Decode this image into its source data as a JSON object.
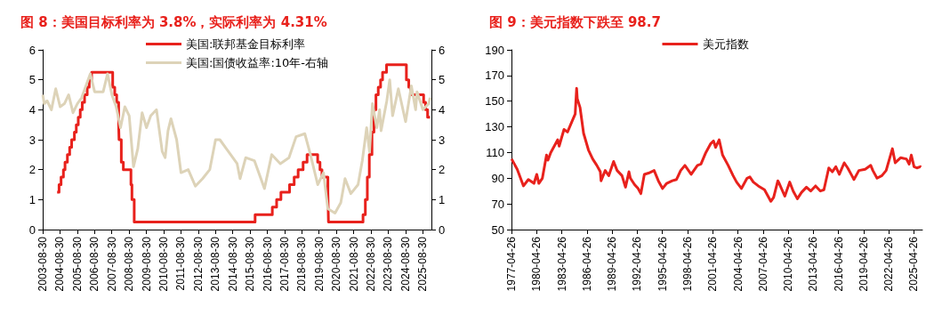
{
  "chart_data": [
    {
      "type": "line",
      "title": "图 8：美国目标利率为 3.8%，实际利率为 4.31%",
      "legend": "top",
      "grid": false,
      "marker": "none",
      "xlim": [
        "2003-08-30",
        "2026-03-01"
      ],
      "xticks": [
        "2003-08-30",
        "2004-08-30",
        "2005-08-30",
        "2006-08-30",
        "2007-08-30",
        "2008-08-30",
        "2009-08-30",
        "2010-08-30",
        "2011-08-30",
        "2012-08-30",
        "2013-08-30",
        "2014-08-30",
        "2015-08-30",
        "2016-08-30",
        "2017-08-30",
        "2018-08-30",
        "2019-08-30",
        "2020-08-30",
        "2021-08-30",
        "2022-08-30",
        "2023-08-30",
        "2024-08-30",
        "2025-08-30"
      ],
      "ylim": [
        0,
        6
      ],
      "yticks": [
        0,
        1,
        2,
        3,
        4,
        5,
        6
      ],
      "y2lim": [
        0,
        6
      ],
      "y2ticks": [
        0,
        1,
        2,
        3,
        4,
        5,
        6
      ],
      "series": [
        {
          "name": "美国:联邦基金目标利率",
          "type": "step",
          "color": "#e8211c",
          "x": [
            "2004-06-30",
            "2004-08-10",
            "2004-09-21",
            "2004-11-10",
            "2004-12-14",
            "2005-02-02",
            "2005-03-22",
            "2005-05-03",
            "2005-06-30",
            "2005-08-09",
            "2005-09-20",
            "2005-11-01",
            "2005-12-13",
            "2006-01-31",
            "2006-03-28",
            "2006-05-10",
            "2006-06-29",
            "2007-09-18",
            "2007-10-31",
            "2007-12-11",
            "2008-01-22",
            "2008-01-30",
            "2008-03-18",
            "2008-04-30",
            "2008-10-08",
            "2008-10-29",
            "2008-12-16",
            "2015-12-16",
            "2016-12-14",
            "2017-03-15",
            "2017-06-14",
            "2017-12-13",
            "2018-03-21",
            "2018-06-13",
            "2018-09-26",
            "2018-12-19",
            "2019-07-31",
            "2019-09-18",
            "2019-10-30",
            "2020-03-03",
            "2020-03-15",
            "2022-03-16",
            "2022-05-04",
            "2022-06-15",
            "2022-07-27",
            "2022-09-21",
            "2022-11-02",
            "2022-12-14",
            "2023-02-01",
            "2023-03-22",
            "2023-05-03",
            "2023-07-26",
            "2024-09-18",
            "2024-11-07",
            "2024-12-18",
            "2025-09-17",
            "2025-10-29",
            "2025-12-10",
            "2026-01-31"
          ],
          "values": [
            1.25,
            1.5,
            1.75,
            2.0,
            2.25,
            2.5,
            2.75,
            3.0,
            3.25,
            3.5,
            3.75,
            4.0,
            4.25,
            4.5,
            4.75,
            5.0,
            5.25,
            4.75,
            4.5,
            4.25,
            3.5,
            3.0,
            2.25,
            2.0,
            1.5,
            1.0,
            0.25,
            0.5,
            0.75,
            1.0,
            1.25,
            1.5,
            1.75,
            2.0,
            2.25,
            2.5,
            2.25,
            2.0,
            1.75,
            1.25,
            0.25,
            0.5,
            1.0,
            1.75,
            2.5,
            3.25,
            4.0,
            4.5,
            4.75,
            5.0,
            5.25,
            5.5,
            5.0,
            4.75,
            4.5,
            4.25,
            4.0,
            3.75,
            3.75
          ]
        },
        {
          "name": "美国:国债收益率:10年-右轴",
          "type": "line",
          "axis": "y2",
          "color": "#ddd3b8",
          "x": [
            "2003-09",
            "2003-10",
            "2003-12",
            "2004-03",
            "2004-06",
            "2004-09",
            "2004-12",
            "2005-03",
            "2005-06",
            "2005-09",
            "2005-12",
            "2006-03",
            "2006-06",
            "2006-09",
            "2006-12",
            "2007-03",
            "2007-06",
            "2007-09",
            "2007-12",
            "2008-03",
            "2008-06",
            "2008-09",
            "2008-12",
            "2009-03",
            "2009-06",
            "2009-09",
            "2009-12",
            "2010-04",
            "2010-08",
            "2010-10",
            "2010-12",
            "2011-02",
            "2011-06",
            "2011-09",
            "2012-02",
            "2012-07",
            "2012-12",
            "2013-05",
            "2013-09",
            "2013-12",
            "2014-06",
            "2014-12",
            "2015-02",
            "2015-06",
            "2015-12",
            "2016-07",
            "2016-12",
            "2017-06",
            "2017-12",
            "2018-05",
            "2018-11",
            "2019-03",
            "2019-08",
            "2019-12",
            "2020-03",
            "2020-08",
            "2020-12",
            "2021-03",
            "2021-07",
            "2021-12",
            "2022-03",
            "2022-06",
            "2022-08",
            "2022-10",
            "2023-01",
            "2023-03",
            "2023-04",
            "2023-08",
            "2023-10",
            "2023-12",
            "2024-04",
            "2024-09",
            "2025-01",
            "2025-04",
            "2025-05",
            "2025-09",
            "2025-11",
            "2026-01",
            "2026-02"
          ],
          "values": [
            4.5,
            4.2,
            4.3,
            4.0,
            4.7,
            4.1,
            4.2,
            4.5,
            3.9,
            4.2,
            4.4,
            4.8,
            5.2,
            4.6,
            4.6,
            4.6,
            5.2,
            4.5,
            4.1,
            3.4,
            4.1,
            3.8,
            2.1,
            2.7,
            3.9,
            3.4,
            3.8,
            4.0,
            2.6,
            2.4,
            3.3,
            3.7,
            3.0,
            1.9,
            2.0,
            1.45,
            1.7,
            2.0,
            3.0,
            3.0,
            2.6,
            2.2,
            1.7,
            2.4,
            2.3,
            1.37,
            2.5,
            2.2,
            2.4,
            3.1,
            3.2,
            2.5,
            1.5,
            1.9,
            0.7,
            0.55,
            0.9,
            1.7,
            1.2,
            1.5,
            2.3,
            3.4,
            2.6,
            4.2,
            3.4,
            4.0,
            3.3,
            4.3,
            5.0,
            3.8,
            4.7,
            3.6,
            4.8,
            4.0,
            4.6,
            4.0,
            4.1,
            4.2,
            4.4
          ]
        }
      ]
    },
    {
      "type": "line",
      "title": "图 9：美元指数下跌至 98.7",
      "legend": "top",
      "grid": false,
      "marker": "none",
      "xlim": [
        "1977-04-26",
        "2026-05-01"
      ],
      "xticks": [
        "1977-04-26",
        "1980-04-26",
        "1983-04-26",
        "1986-04-26",
        "1989-04-26",
        "1992-04-26",
        "1995-04-26",
        "1998-04-26",
        "2001-04-26",
        "2004-04-26",
        "2007-04-26",
        "2010-04-26",
        "2013-04-26",
        "2016-04-26",
        "2019-04-26",
        "2022-04-26",
        "2025-04-26"
      ],
      "ylim": [
        50,
        190
      ],
      "yticks": [
        50,
        70,
        90,
        110,
        130,
        150,
        170,
        190
      ],
      "series": [
        {
          "name": "美元指数",
          "color": "#e8211c",
          "x": [
            "1977-05",
            "1978-01",
            "1978-10",
            "1979-05",
            "1980-01",
            "1980-05",
            "1980-08",
            "1981-01",
            "1981-07",
            "1981-09",
            "1982-01",
            "1982-11",
            "1983-01",
            "1983-08",
            "1984-01",
            "1984-08",
            "1984-12",
            "1985-02",
            "1985-03",
            "1985-07",
            "1985-12",
            "1986-07",
            "1987-01",
            "1987-07",
            "1987-12",
            "1988-01",
            "1988-07",
            "1988-12",
            "1989-07",
            "1989-12",
            "1990-07",
            "1990-12",
            "1991-05",
            "1991-07",
            "1992-01",
            "1992-06",
            "1992-10",
            "1993-03",
            "1993-09",
            "1994-05",
            "1994-11",
            "1995-05",
            "1995-11",
            "1996-07",
            "1997-01",
            "1997-07",
            "1998-01",
            "1998-10",
            "1999-07",
            "1999-12",
            "2000-07",
            "2001-02",
            "2001-06",
            "2001-09",
            "2002-02",
            "2002-07",
            "2003-03",
            "2003-10",
            "2004-03",
            "2004-10",
            "2005-06",
            "2005-10",
            "2006-03",
            "2006-10",
            "2007-07",
            "2007-12",
            "2008-04",
            "2008-08",
            "2009-02",
            "2009-04",
            "2009-12",
            "2010-07",
            "2010-12",
            "2011-06",
            "2011-12",
            "2012-07",
            "2013-01",
            "2013-08",
            "2014-03",
            "2014-08",
            "2015-03",
            "2015-08",
            "2016-01",
            "2016-06",
            "2017-01",
            "2017-06",
            "2017-12",
            "2018-03",
            "2018-10",
            "2019-07",
            "2020-03",
            "2020-06",
            "2020-12",
            "2021-07",
            "2022-01",
            "2022-10",
            "2023-02",
            "2023-10",
            "2024-06",
            "2024-10",
            "2025-01",
            "2025-05",
            "2025-09",
            "2026-02",
            "2026-03"
          ],
          "values": [
            105,
            97,
            84,
            89,
            86,
            93,
            86,
            90,
            108,
            104,
            110,
            120,
            115,
            128,
            126,
            135,
            140,
            160,
            152,
            145,
            125,
            112,
            105,
            100,
            95,
            88,
            96,
            92,
            103,
            96,
            92,
            83,
            95,
            90,
            85,
            82,
            78,
            93,
            94,
            96,
            88,
            82,
            86,
            88,
            89,
            96,
            100,
            93,
            100,
            101,
            110,
            117,
            119,
            114,
            120,
            108,
            100,
            92,
            87,
            82,
            90,
            91,
            87,
            84,
            81,
            76,
            72,
            75,
            88,
            86,
            76,
            87,
            80,
            74,
            79,
            83,
            80,
            84,
            80,
            81,
            98,
            95,
            99,
            93,
            102,
            98,
            92,
            89,
            96,
            97,
            100,
            96,
            90,
            92,
            96,
            113,
            102,
            106,
            105,
            101,
            108,
            99,
            98,
            99,
            98.7
          ]
        }
      ]
    }
  ]
}
